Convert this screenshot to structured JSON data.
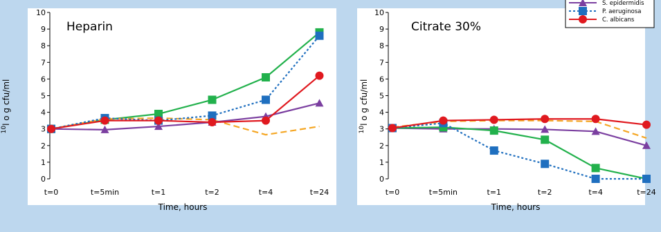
{
  "chart_data": [
    {
      "type": "line",
      "panel_label": "Heparin",
      "categories": [
        "t=0",
        "t=5min",
        "t=1",
        "t=2",
        "t=4",
        "t=24"
      ],
      "xlabel": "Time, hours",
      "ylabel_sup": "10",
      "ylabel": "l o g cfu/ml",
      "ylim": [
        0,
        10
      ],
      "yticks": [
        "0",
        "1",
        "2",
        "3",
        "4",
        "5",
        "6",
        "7",
        "8",
        "9",
        "10"
      ],
      "grid": false,
      "series": [
        {
          "key": "green",
          "color": "#22b14c",
          "marker": "square",
          "dash": "solid",
          "values": [
            3.0,
            3.55,
            3.9,
            4.75,
            6.1,
            8.8
          ]
        },
        {
          "key": "orange",
          "color": "#f5a623",
          "marker": "none",
          "dash": "dashed",
          "values": [
            3.0,
            3.6,
            3.65,
            3.55,
            2.65,
            3.15
          ]
        },
        {
          "key": "purple",
          "color": "#7b3fa0",
          "marker": "triangle",
          "dash": "solid",
          "values": [
            3.0,
            2.95,
            3.15,
            3.4,
            3.75,
            4.55
          ]
        },
        {
          "key": "blue",
          "color": "#1f6fbf",
          "marker": "square",
          "dash": "dotted",
          "values": [
            3.0,
            3.65,
            3.5,
            3.8,
            4.75,
            8.6
          ]
        },
        {
          "key": "red",
          "color": "#e0191f",
          "marker": "circle",
          "dash": "solid",
          "values": [
            3.0,
            3.5,
            3.5,
            3.4,
            3.5,
            6.2
          ]
        }
      ]
    },
    {
      "type": "line",
      "panel_label": "Citrate 30%",
      "categories": [
        "t=0",
        "t=5min",
        "t=1",
        "t=2",
        "t=4",
        "t=24"
      ],
      "xlabel": "Time, hours",
      "ylabel_sup": "10",
      "ylabel": "l o g cfu/ml",
      "ylim": [
        0,
        10
      ],
      "yticks": [
        "0",
        "1",
        "2",
        "3",
        "4",
        "5",
        "6",
        "7",
        "8",
        "9",
        "10"
      ],
      "grid": false,
      "series": [
        {
          "key": "orange",
          "color": "#f5a623",
          "marker": "none",
          "dash": "dashed",
          "values": [
            3.1,
            3.45,
            3.5,
            3.5,
            3.45,
            2.45
          ]
        },
        {
          "key": "purple",
          "color": "#7b3fa0",
          "marker": "triangle",
          "dash": "solid",
          "values": [
            3.05,
            3.0,
            3.0,
            2.97,
            2.85,
            2.0
          ]
        },
        {
          "key": "green",
          "color": "#22b14c",
          "marker": "square",
          "dash": "solid",
          "values": [
            3.05,
            3.1,
            2.9,
            2.35,
            0.65,
            0.0
          ]
        },
        {
          "key": "blue",
          "color": "#1f6fbf",
          "marker": "square",
          "dash": "dotted",
          "values": [
            3.05,
            3.35,
            1.7,
            0.9,
            0.0,
            0.0
          ]
        },
        {
          "key": "red",
          "color": "#e0191f",
          "marker": "circle",
          "dash": "solid",
          "values": [
            3.05,
            3.5,
            3.55,
            3.6,
            3.6,
            3.25
          ]
        }
      ]
    }
  ],
  "legend": {
    "placement": "top-right",
    "items": [
      {
        "series_key": "purple",
        "name": "S. epidermidis"
      },
      {
        "series_key": "blue",
        "name": "P. aeruginosa"
      },
      {
        "series_key": "red",
        "name": "C. albicans"
      }
    ]
  }
}
